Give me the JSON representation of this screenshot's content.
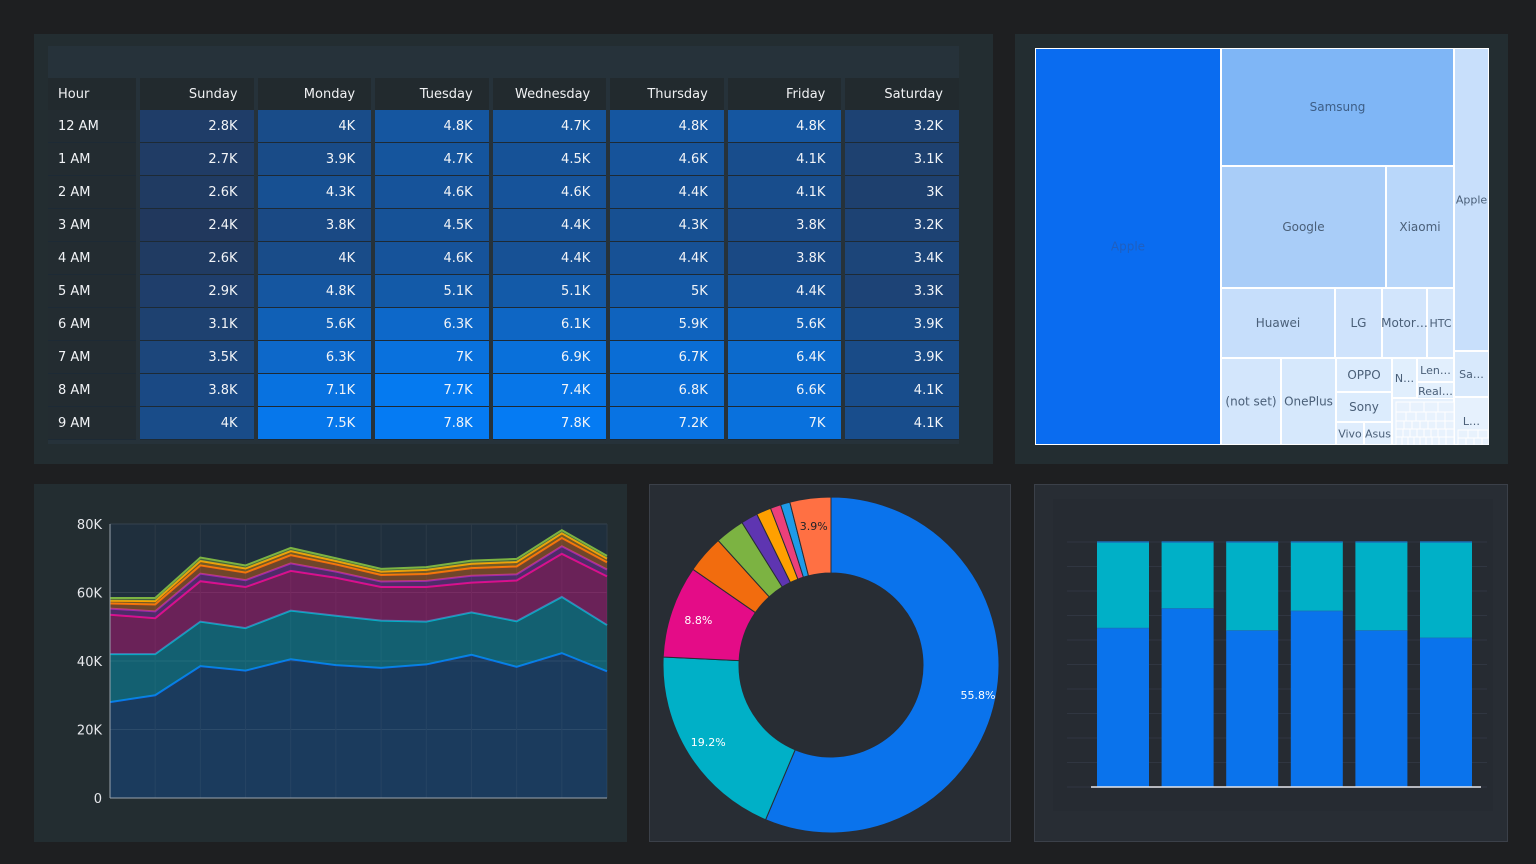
{
  "colors": {
    "blue": "#0a73ec",
    "teal": "#00b0c7",
    "magenta": "#e40c87",
    "orange": "#f26c0e",
    "green": "#7cb342",
    "purple": "#5e35b1",
    "amber": "#ffa000",
    "pink": "#ec407a",
    "sky": "#1e9be8",
    "coral": "#ff7043"
  },
  "chart_data": [
    {
      "type": "heatmap",
      "columns": [
        "Hour",
        "Sunday",
        "Monday",
        "Tuesday",
        "Wednesday",
        "Thursday",
        "Friday",
        "Saturday"
      ],
      "rows": [
        {
          "hour": "12 AM",
          "values": [
            2.8,
            4.0,
            4.8,
            4.7,
            4.8,
            4.8,
            3.2
          ],
          "labels": [
            "2.8K",
            "4K",
            "4.8K",
            "4.7K",
            "4.8K",
            "4.8K",
            "3.2K"
          ]
        },
        {
          "hour": "1 AM",
          "values": [
            2.7,
            3.9,
            4.7,
            4.5,
            4.6,
            4.1,
            3.1
          ],
          "labels": [
            "2.7K",
            "3.9K",
            "4.7K",
            "4.5K",
            "4.6K",
            "4.1K",
            "3.1K"
          ]
        },
        {
          "hour": "2 AM",
          "values": [
            2.6,
            4.3,
            4.6,
            4.6,
            4.4,
            4.1,
            3.0
          ],
          "labels": [
            "2.6K",
            "4.3K",
            "4.6K",
            "4.6K",
            "4.4K",
            "4.1K",
            "3K"
          ]
        },
        {
          "hour": "3 AM",
          "values": [
            2.4,
            3.8,
            4.5,
            4.4,
            4.3,
            3.8,
            3.2
          ],
          "labels": [
            "2.4K",
            "3.8K",
            "4.5K",
            "4.4K",
            "4.3K",
            "3.8K",
            "3.2K"
          ]
        },
        {
          "hour": "4 AM",
          "values": [
            2.6,
            4.0,
            4.6,
            4.4,
            4.4,
            3.8,
            3.4
          ],
          "labels": [
            "2.6K",
            "4K",
            "4.6K",
            "4.4K",
            "4.4K",
            "3.8K",
            "3.4K"
          ]
        },
        {
          "hour": "5 AM",
          "values": [
            2.9,
            4.8,
            5.1,
            5.1,
            5.0,
            4.4,
            3.3
          ],
          "labels": [
            "2.9K",
            "4.8K",
            "5.1K",
            "5.1K",
            "5K",
            "4.4K",
            "3.3K"
          ]
        },
        {
          "hour": "6 AM",
          "values": [
            3.1,
            5.6,
            6.3,
            6.1,
            5.9,
            5.6,
            3.9
          ],
          "labels": [
            "3.1K",
            "5.6K",
            "6.3K",
            "6.1K",
            "5.9K",
            "5.6K",
            "3.9K"
          ]
        },
        {
          "hour": "7 AM",
          "values": [
            3.5,
            6.3,
            7.0,
            6.9,
            6.7,
            6.4,
            3.9
          ],
          "labels": [
            "3.5K",
            "6.3K",
            "7K",
            "6.9K",
            "6.7K",
            "6.4K",
            "3.9K"
          ]
        },
        {
          "hour": "8 AM",
          "values": [
            3.8,
            7.1,
            7.7,
            7.4,
            6.8,
            6.6,
            4.1
          ],
          "labels": [
            "3.8K",
            "7.1K",
            "7.7K",
            "7.4K",
            "6.8K",
            "6.6K",
            "4.1K"
          ]
        },
        {
          "hour": "9 AM",
          "values": [
            4.0,
            7.5,
            7.8,
            7.8,
            7.2,
            7.0,
            4.1
          ],
          "labels": [
            "4K",
            "7.5K",
            "7.8K",
            "7.8K",
            "7.2K",
            "7K",
            "4.1K"
          ]
        }
      ]
    },
    {
      "type": "treemap",
      "items": [
        {
          "label": "Apple",
          "color": "#0a6cf0",
          "text": "#1f5fbf"
        },
        {
          "label": "Samsung",
          "color": "#7fb6f6",
          "text": "#3d5e86"
        },
        {
          "label": "Google",
          "color": "#a9cdf8",
          "text": "#4a5f78"
        },
        {
          "label": "Xiaomi",
          "color": "#b9d7fa",
          "text": "#4a5f78"
        },
        {
          "label": "Apple",
          "color": "#c8dffb",
          "text": "#4a5f78"
        },
        {
          "label": "Huawei",
          "color": "#c6defb",
          "text": "#4a5f78"
        },
        {
          "label": "LG",
          "color": "#cfe3fc",
          "text": "#4a5f78"
        },
        {
          "label": "Motor…",
          "color": "#d2e5fc",
          "text": "#4a5f78"
        },
        {
          "label": "HTC",
          "color": "#d5e7fc",
          "text": "#4a5f78"
        },
        {
          "label": "Sa…",
          "color": "#d8e9fc",
          "text": "#4a5f78"
        },
        {
          "label": "(not set)",
          "color": "#d3e6fc",
          "text": "#4a5f78"
        },
        {
          "label": "OnePlus",
          "color": "#d6e8fc",
          "text": "#4a5f78"
        },
        {
          "label": "OPPO",
          "color": "#dbebfd",
          "text": "#4a5f78"
        },
        {
          "label": "Sony",
          "color": "#dcecfd",
          "text": "#4a5f78"
        },
        {
          "label": "Vivo",
          "color": "#dfedfd",
          "text": "#4a5f78"
        },
        {
          "label": "Asus",
          "color": "#e0eefd",
          "text": "#4a5f78"
        },
        {
          "label": "N…",
          "color": "#e1effd",
          "text": "#4a5f78"
        },
        {
          "label": "Len…",
          "color": "#e2effd",
          "text": "#4a5f78"
        },
        {
          "label": "Real…",
          "color": "#e3f0fd",
          "text": "#4a5f78"
        },
        {
          "label": "…",
          "color": "#e6f1fd",
          "text": "#4a5f78"
        },
        {
          "label": "L…",
          "color": "#e6f1fd",
          "text": "#4a5f78"
        }
      ]
    },
    {
      "type": "area",
      "stacked": true,
      "y_ticks": [
        "80K",
        "60K",
        "40K",
        "20K",
        "0"
      ],
      "ylim": [
        0,
        80000
      ],
      "x_count": 12,
      "series": [
        {
          "color": "#0a73ec",
          "values": [
            28000,
            30000,
            38500,
            37200,
            40500,
            38800,
            38000,
            39000,
            41800,
            38300,
            42300,
            37000
          ]
        },
        {
          "color": "#00b0c7",
          "values": [
            14000,
            12000,
            13000,
            12400,
            14200,
            14400,
            13800,
            12500,
            12400,
            13300,
            16400,
            13500
          ]
        },
        {
          "color": "#e40c87",
          "values": [
            11500,
            10500,
            11800,
            12000,
            11600,
            11100,
            9800,
            10100,
            8700,
            11900,
            12600,
            14200
          ]
        },
        {
          "color": "#9c27b0",
          "values": [
            1800,
            2000,
            2200,
            2000,
            2200,
            1800,
            1600,
            1800,
            2000,
            1800,
            2200,
            2000
          ]
        },
        {
          "color": "#f26c0e",
          "values": [
            1500,
            2000,
            2400,
            2200,
            2400,
            2100,
            1900,
            2000,
            2200,
            2300,
            2400,
            2100
          ]
        },
        {
          "color": "#ffa000",
          "values": [
            800,
            1000,
            1300,
            1200,
            1200,
            1000,
            1000,
            1200,
            1300,
            1300,
            1400,
            1100
          ]
        },
        {
          "color": "#7cb342",
          "values": [
            800,
            900,
            1000,
            900,
            900,
            800,
            800,
            800,
            900,
            900,
            900,
            800
          ]
        }
      ]
    },
    {
      "type": "pie",
      "donut": true,
      "slices": [
        {
          "value": 55.8,
          "label": "55.8%",
          "color": "#0a73ec"
        },
        {
          "value": 19.2,
          "label": "19.2%",
          "color": "#00b0c7"
        },
        {
          "value": 8.8,
          "label": "8.8%",
          "color": "#e40c87"
        },
        {
          "value": 3.6,
          "label": "",
          "color": "#f26c0e"
        },
        {
          "value": 2.8,
          "label": "",
          "color": "#7cb342"
        },
        {
          "value": 1.6,
          "label": "",
          "color": "#5e35b1"
        },
        {
          "value": 1.4,
          "label": "",
          "color": "#ffa000"
        },
        {
          "value": 1.0,
          "label": "",
          "color": "#ec407a"
        },
        {
          "value": 0.9,
          "label": "",
          "color": "#1e9be8"
        },
        {
          "value": 3.9,
          "label": "3.9%",
          "color": "#ff7043"
        }
      ]
    },
    {
      "type": "bar",
      "stacked": true,
      "categories": [
        "",
        "",
        "",
        "",
        "",
        ""
      ],
      "series": [
        {
          "color": "#0a73ec",
          "values": [
            0.65,
            0.73,
            0.64,
            0.72,
            0.64,
            0.61
          ]
        },
        {
          "color": "#00b0c7",
          "values": [
            0.35,
            0.27,
            0.36,
            0.28,
            0.36,
            0.39
          ]
        }
      ]
    }
  ]
}
